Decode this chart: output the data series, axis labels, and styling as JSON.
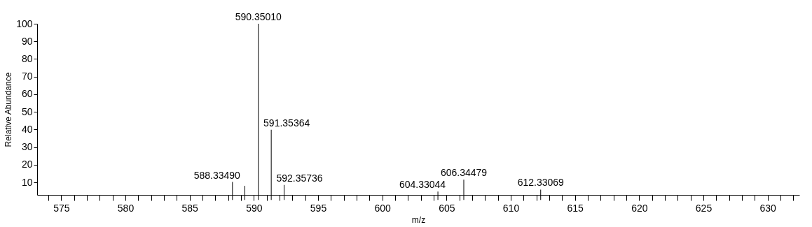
{
  "chart_data": {
    "type": "bar",
    "xlabel": "m/z",
    "ylabel": "Relative Abundance",
    "x": [
      588.3349,
      589.3,
      590.3501,
      591.35364,
      592.35736,
      604.33044,
      606.34479,
      612.33069
    ],
    "values": [
      10.2,
      8.1,
      100,
      39.9,
      8.5,
      4.8,
      11.5,
      5.9
    ],
    "annotations": [
      {
        "text": "588.33490",
        "x": 588.3349,
        "y": 10.2
      },
      {
        "text": "590.35010",
        "x": 590.3501,
        "y": 100
      },
      {
        "text": "591.35364",
        "x": 591.35364,
        "y": 39.9
      },
      {
        "text": "592.35736",
        "x": 592.35736,
        "y": 8.5
      },
      {
        "text": "604.33044",
        "x": 604.33044,
        "y": 4.8
      },
      {
        "text": "606.34479",
        "x": 606.34479,
        "y": 11.5
      },
      {
        "text": "612.33069",
        "x": 612.33069,
        "y": 5.9
      }
    ],
    "color": "#000000",
    "xlim": [
      573.4,
      632.2
    ],
    "ylim": [
      2.9,
      100
    ],
    "xticks": [
      {
        "value": 574,
        "label": null
      },
      575,
      {
        "value": 576,
        "label": null
      },
      {
        "value": 577,
        "label": null
      },
      {
        "value": 578,
        "label": null
      },
      {
        "value": 579,
        "label": null
      },
      580,
      {
        "value": 581,
        "label": null
      },
      {
        "value": 582,
        "label": null
      },
      {
        "value": 583,
        "label": null
      },
      {
        "value": 584,
        "label": null
      },
      585,
      {
        "value": 586,
        "label": null
      },
      {
        "value": 587,
        "label": null
      },
      {
        "value": 588,
        "label": null
      },
      {
        "value": 589,
        "label": null
      },
      590,
      {
        "value": 591,
        "label": null
      },
      {
        "value": 592,
        "label": null
      },
      {
        "value": 593,
        "label": null
      },
      {
        "value": 594,
        "label": null
      },
      595,
      {
        "value": 596,
        "label": null
      },
      {
        "value": 597,
        "label": null
      },
      {
        "value": 598,
        "label": null
      },
      {
        "value": 599,
        "label": null
      },
      600,
      {
        "value": 601,
        "label": null
      },
      {
        "value": 602,
        "label": null
      },
      {
        "value": 603,
        "label": null
      },
      {
        "value": 604,
        "label": null
      },
      605,
      {
        "value": 606,
        "label": null
      },
      {
        "value": 607,
        "label": null
      },
      {
        "value": 608,
        "label": null
      },
      {
        "value": 609,
        "label": null
      },
      610,
      {
        "value": 611,
        "label": null
      },
      {
        "value": 612,
        "label": null
      },
      {
        "value": 613,
        "label": null
      },
      {
        "value": 614,
        "label": null
      },
      615,
      {
        "value": 616,
        "label": null
      },
      {
        "value": 617,
        "label": null
      },
      {
        "value": 618,
        "label": null
      },
      {
        "value": 619,
        "label": null
      },
      620,
      {
        "value": 621,
        "label": null
      },
      {
        "value": 622,
        "label": null
      },
      {
        "value": 623,
        "label": null
      },
      {
        "value": 624,
        "label": null
      },
      625,
      {
        "value": 626,
        "label": null
      },
      {
        "value": 627,
        "label": null
      },
      {
        "value": 628,
        "label": null
      },
      {
        "value": 629,
        "label": null
      },
      630,
      {
        "value": 631,
        "label": null
      },
      {
        "value": 632,
        "label": null
      }
    ],
    "yticks": [
      10,
      20,
      30,
      40,
      50,
      60,
      70,
      80,
      90,
      100
    ],
    "grid": false
  }
}
